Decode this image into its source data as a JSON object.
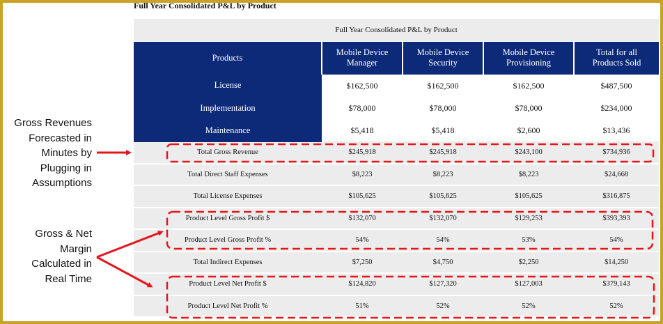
{
  "doc_title": "Full Year Consolidated P&L by Product",
  "table": {
    "caption": "Full Year Consolidated P&L by Product",
    "header": {
      "label": "Products",
      "columns": [
        [
          "Mobile Device",
          "Manager"
        ],
        [
          "Mobile Device",
          "Security"
        ],
        [
          "Mobile Device",
          "Provisioning"
        ],
        [
          "Total for all",
          "Products Sold"
        ]
      ]
    },
    "revenue_rows": [
      {
        "label": "License",
        "values": [
          "$162,500",
          "$162,500",
          "$162,500",
          "$487,500"
        ]
      },
      {
        "label": "Implementation",
        "values": [
          "$78,000",
          "$78,000",
          "$78,000",
          "$234,000"
        ]
      },
      {
        "label": "Maintenance",
        "values": [
          "$5,418",
          "$5,418",
          "$2,600",
          "$13,436"
        ]
      }
    ],
    "summary_rows": [
      {
        "label": "Total Gross Revenue",
        "values": [
          "$245,918",
          "$245,918",
          "$243,100",
          "$734,936"
        ]
      },
      {
        "label": "Total Direct Staff Expenses",
        "values": [
          "$8,223",
          "$8,223",
          "$8,223",
          "$24,668"
        ]
      },
      {
        "label": "Total License Expenses",
        "values": [
          "$105,625",
          "$105,625",
          "$105,625",
          "$316,875"
        ]
      },
      {
        "label": "Product Level Gross Profit $",
        "values": [
          "$132,070",
          "$132,070",
          "$129,253",
          "$393,393"
        ]
      },
      {
        "label": "Product Level Gross Profit %",
        "values": [
          "54%",
          "54%",
          "53%",
          "54%"
        ]
      },
      {
        "label": "Total Indirect Expenses",
        "values": [
          "$7,250",
          "$4,750",
          "$2,250",
          "$14,250"
        ]
      },
      {
        "label": "Product Level Net Profit $",
        "values": [
          "$124,820",
          "$127,320",
          "$127,003",
          "$379,143"
        ]
      },
      {
        "label": "Product Level Net Profit %",
        "values": [
          "51%",
          "52%",
          "52%",
          "52%"
        ]
      }
    ]
  },
  "callouts": {
    "gross_revenue": [
      "Gross Revenues",
      "Forecasted in",
      "Minutes by",
      "Plugging in",
      "Assumptions"
    ],
    "margin": [
      "Gross & Net",
      "Margin",
      "Calculated in",
      "Real Time"
    ]
  },
  "colors": {
    "navy": "#0d2a78",
    "highlight_red": "#e3161b",
    "row_grey": "#ececec",
    "frame_gold": "#c9a227"
  }
}
